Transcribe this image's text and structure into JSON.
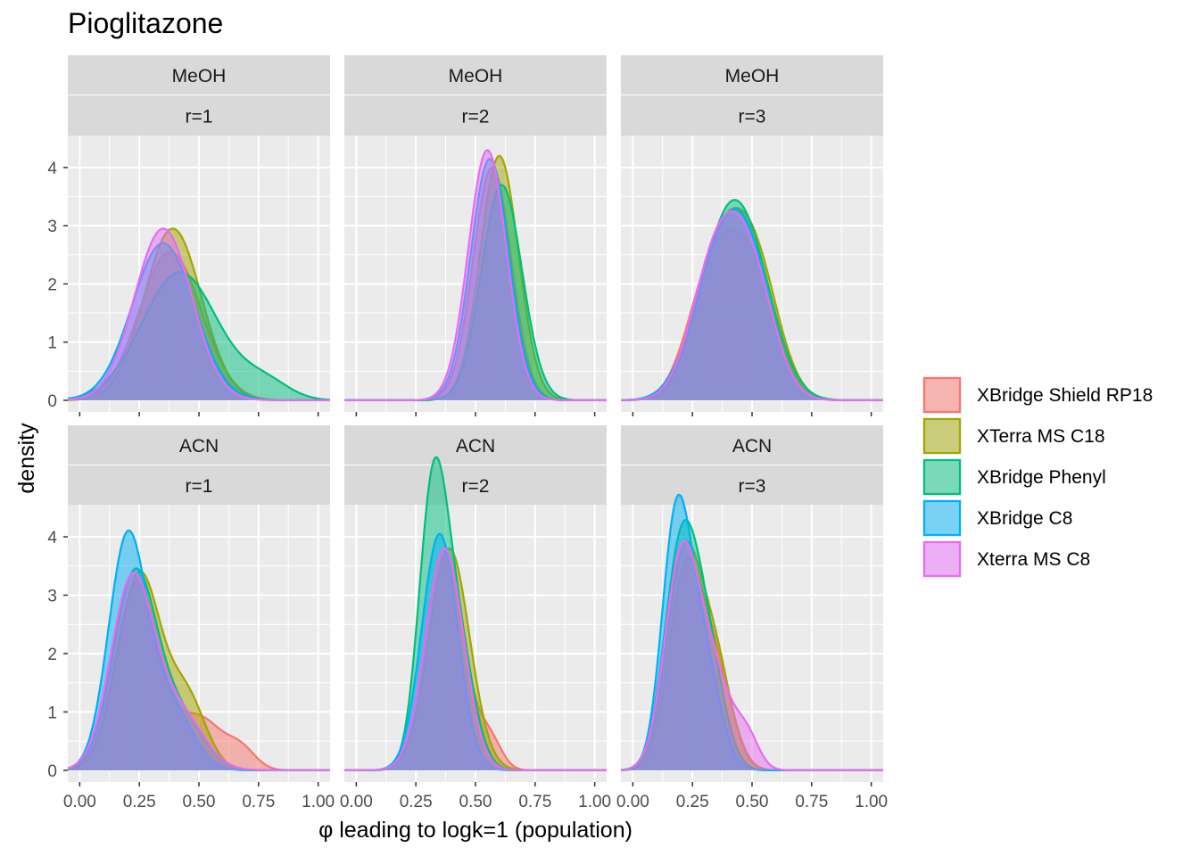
{
  "title": "Pioglitazone",
  "colors": {
    "panel_bg": "#EBEBEB",
    "grid": "#FFFFFF",
    "strip_bg": "#D9D9D9"
  },
  "chart_data": {
    "type": "area",
    "title": "Pioglitazone",
    "xlabel": "φ leading to logk=1 (population)",
    "ylabel": "density",
    "xlim": [
      -0.05,
      1.05
    ],
    "ylim": [
      -0.2,
      4.55
    ],
    "x_ticks": [
      0.0,
      0.25,
      0.5,
      0.75,
      1.0
    ],
    "x_tick_labels": [
      "0.00",
      "0.25",
      "0.50",
      "0.75",
      "1.00"
    ],
    "y_ticks": [
      0,
      1,
      2,
      3,
      4
    ],
    "y_tick_labels": [
      "0",
      "1",
      "2",
      "3",
      "4"
    ],
    "grid": true,
    "legend": {
      "position": "right",
      "entries": [
        {
          "name": "XBridge Shield RP18",
          "color": "#F8766D"
        },
        {
          "name": "XTerra MS C18",
          "color": "#A3A500"
        },
        {
          "name": "XBridge Phenyl",
          "color": "#00BF7D"
        },
        {
          "name": "XBridge C8",
          "color": "#00B0F6"
        },
        {
          "name": "Xterra MS C8",
          "color": "#E76BF3"
        }
      ]
    },
    "facets": [
      {
        "strip1": "MeOH",
        "strip2": "r=1",
        "series": [
          {
            "name": "XBridge Shield RP18",
            "peaks": [
              [
                0.38,
                2.55,
                0.13
              ]
            ]
          },
          {
            "name": "XTerra MS C18",
            "peaks": [
              [
                0.39,
                2.95,
                0.12
              ]
            ]
          },
          {
            "name": "XBridge Phenyl",
            "peaks": [
              [
                0.42,
                2.2,
                0.16
              ],
              [
                0.78,
                0.3,
                0.1
              ]
            ]
          },
          {
            "name": "XBridge C8",
            "peaks": [
              [
                0.35,
                2.7,
                0.13
              ]
            ]
          },
          {
            "name": "Xterra MS C8",
            "peaks": [
              [
                0.35,
                2.95,
                0.12
              ]
            ]
          }
        ]
      },
      {
        "strip1": "MeOH",
        "strip2": "r=2",
        "series": [
          {
            "name": "XBridge Shield RP18",
            "peaks": [
              [
                0.57,
                4.0,
                0.08
              ]
            ]
          },
          {
            "name": "XTerra MS C18",
            "peaks": [
              [
                0.6,
                4.2,
                0.08
              ]
            ]
          },
          {
            "name": "XBridge Phenyl",
            "peaks": [
              [
                0.61,
                3.7,
                0.085
              ]
            ]
          },
          {
            "name": "XBridge C8",
            "peaks": [
              [
                0.56,
                4.15,
                0.08
              ]
            ]
          },
          {
            "name": "Xterra MS C8",
            "peaks": [
              [
                0.55,
                4.3,
                0.08
              ]
            ]
          }
        ]
      },
      {
        "strip1": "MeOH",
        "strip2": "r=3",
        "series": [
          {
            "name": "XBridge Shield RP18",
            "peaks": [
              [
                0.33,
                2.1,
                0.1
              ],
              [
                0.5,
                2.1,
                0.1
              ]
            ]
          },
          {
            "name": "XTerra MS C18",
            "peaks": [
              [
                0.35,
                2.25,
                0.1
              ],
              [
                0.51,
                2.3,
                0.1
              ]
            ]
          },
          {
            "name": "XBridge Phenyl",
            "peaks": [
              [
                0.36,
                2.0,
                0.11
              ],
              [
                0.49,
                2.1,
                0.11
              ]
            ]
          },
          {
            "name": "XBridge C8",
            "peaks": [
              [
                0.35,
                2.05,
                0.11
              ],
              [
                0.49,
                2.05,
                0.1
              ]
            ]
          },
          {
            "name": "Xterra MS C8",
            "peaks": [
              [
                0.34,
                2.15,
                0.1
              ],
              [
                0.49,
                2.15,
                0.1
              ]
            ]
          }
        ]
      },
      {
        "strip1": "ACN",
        "strip2": "r=1",
        "series": [
          {
            "name": "XBridge Shield RP18",
            "peaks": [
              [
                0.24,
                3.2,
                0.09
              ],
              [
                0.5,
                0.9,
                0.1
              ],
              [
                0.68,
                0.3,
                0.06
              ]
            ]
          },
          {
            "name": "XTerra MS C18",
            "peaks": [
              [
                0.25,
                3.35,
                0.09
              ],
              [
                0.45,
                1.2,
                0.08
              ]
            ]
          },
          {
            "name": "XBridge Phenyl",
            "peaks": [
              [
                0.23,
                3.3,
                0.09
              ],
              [
                0.42,
                0.9,
                0.1
              ]
            ]
          },
          {
            "name": "XBridge C8",
            "peaks": [
              [
                0.2,
                3.95,
                0.08
              ],
              [
                0.38,
                1.1,
                0.09
              ]
            ]
          },
          {
            "name": "Xterra MS C8",
            "peaks": [
              [
                0.22,
                3.25,
                0.09
              ],
              [
                0.42,
                0.95,
                0.1
              ]
            ]
          }
        ]
      },
      {
        "strip1": "ACN",
        "strip2": "r=2",
        "series": [
          {
            "name": "XBridge Shield RP18",
            "peaks": [
              [
                0.37,
                3.8,
                0.08
              ],
              [
                0.56,
                0.5,
                0.05
              ]
            ]
          },
          {
            "name": "XTerra MS C18",
            "peaks": [
              [
                0.39,
                3.8,
                0.085
              ]
            ]
          },
          {
            "name": "XBridge Phenyl",
            "peaks": [
              [
                0.32,
                4.45,
                0.06
              ],
              [
                0.42,
                2.2,
                0.07
              ]
            ]
          },
          {
            "name": "XBridge C8",
            "peaks": [
              [
                0.35,
                4.05,
                0.075
              ]
            ]
          },
          {
            "name": "Xterra MS C8",
            "peaks": [
              [
                0.37,
                3.8,
                0.08
              ]
            ]
          }
        ]
      },
      {
        "strip1": "ACN",
        "strip2": "r=3",
        "series": [
          {
            "name": "XBridge Shield RP18",
            "peaks": [
              [
                0.22,
                3.3,
                0.07
              ],
              [
                0.35,
                1.6,
                0.07
              ]
            ]
          },
          {
            "name": "XTerra MS C18",
            "peaks": [
              [
                0.21,
                3.5,
                0.07
              ],
              [
                0.34,
                1.9,
                0.07
              ]
            ]
          },
          {
            "name": "XBridge Phenyl",
            "peaks": [
              [
                0.2,
                3.6,
                0.07
              ],
              [
                0.31,
                1.9,
                0.07
              ]
            ]
          },
          {
            "name": "XBridge C8",
            "peaks": [
              [
                0.18,
                4.05,
                0.06
              ],
              [
                0.29,
                2.0,
                0.07
              ]
            ]
          },
          {
            "name": "Xterra MS C8",
            "peaks": [
              [
                0.2,
                3.4,
                0.07
              ],
              [
                0.33,
                1.7,
                0.08
              ],
              [
                0.48,
                0.5,
                0.05
              ]
            ]
          }
        ]
      }
    ]
  }
}
